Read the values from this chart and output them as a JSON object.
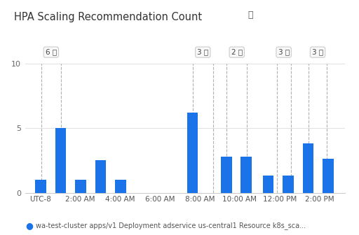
{
  "title": "HPA Scaling Recommendation Count",
  "bar_color": "#1a73e8",
  "background_color": "#ffffff",
  "ylim": [
    0,
    10
  ],
  "yticks": [
    0,
    5,
    10
  ],
  "x_labels": [
    "UTC-8",
    "2:00 AM",
    "4:00 AM",
    "6:00 AM",
    "8:00 AM",
    "10:00 AM",
    "12:00 PM",
    "2:00 PM"
  ],
  "bars": [
    {
      "x": 0.0,
      "height": 1.0
    },
    {
      "x": 1.0,
      "height": 5.0
    },
    {
      "x": 2.0,
      "height": 1.0
    },
    {
      "x": 3.0,
      "height": 2.5
    },
    {
      "x": 4.0,
      "height": 1.0
    },
    {
      "x": 7.6,
      "height": 6.2
    },
    {
      "x": 9.3,
      "height": 2.8
    },
    {
      "x": 10.3,
      "height": 2.8
    },
    {
      "x": 11.4,
      "height": 1.3
    },
    {
      "x": 12.4,
      "height": 1.3
    },
    {
      "x": 13.4,
      "height": 3.8
    },
    {
      "x": 14.4,
      "height": 2.6
    }
  ],
  "bar_width": 0.55,
  "vlines": [
    0.3,
    1.3,
    7.9,
    8.9,
    9.6,
    10.6,
    12.1,
    12.8,
    13.7,
    14.6
  ],
  "ann_labels": [
    "6",
    "3",
    "2",
    "3",
    "3"
  ],
  "ann_x": [
    0.8,
    8.4,
    10.1,
    12.45,
    14.15
  ],
  "xtick_pos": [
    0.25,
    2.25,
    4.25,
    6.25,
    8.25,
    10.25,
    12.25,
    14.25
  ],
  "legend_text": "wa-test-cluster apps/v1 Deployment adservice us-central1 Resource k8s_sca...",
  "legend_dot_color": "#1a73e8"
}
